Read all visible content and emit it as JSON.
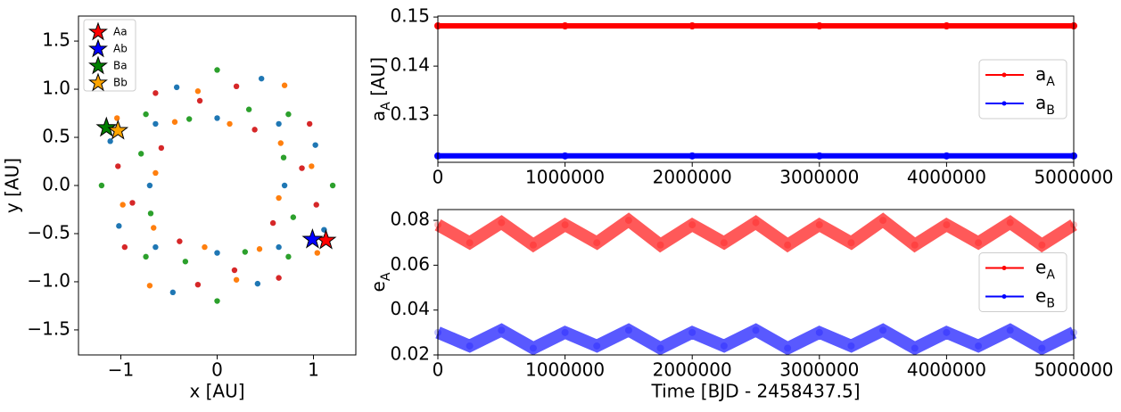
{
  "chart_data": [
    {
      "type": "scatter",
      "xlabel": "x [AU]",
      "ylabel": "y [AU]",
      "xlim": [
        -1.44,
        1.44
      ],
      "ylim": [
        -1.76,
        1.76
      ],
      "xticks": [
        {
          "value": -1,
          "label": "−1"
        },
        0,
        1
      ],
      "yticks": [
        {
          "value": -1.5,
          "label": "−1.5"
        },
        {
          "value": -1,
          "label": "−1.0"
        },
        {
          "value": -0.5,
          "label": "−0.5"
        },
        {
          "value": 0,
          "label": "0.0"
        },
        0.5,
        {
          "value": 1,
          "label": "1.0"
        },
        1.5
      ],
      "legend": "upper left",
      "series": [
        {
          "color": "#1f77b4",
          "x": [
            0.7,
            1.02,
            0.64,
            0.46,
            0,
            -0.42,
            -0.64,
            -1.11,
            -0.7,
            -1.02,
            -0.64,
            -0.46,
            0,
            0.42,
            0.64,
            1.11
          ],
          "values": [
            0,
            0.42,
            0.64,
            1.11,
            0.7,
            1.02,
            0.64,
            0.46,
            0,
            -0.42,
            -0.64,
            -1.11,
            -0.7,
            -1.02,
            -0.64,
            -0.46
          ]
        },
        {
          "color": "#ff7f0e",
          "x": [
            0.98,
            0.66,
            0.7,
            0.13,
            -0.2,
            -0.44,
            -1.04,
            -0.64,
            -0.98,
            -0.66,
            -0.7,
            -0.13,
            0.2,
            0.44,
            1.04,
            0.64
          ],
          "values": [
            0.2,
            0.44,
            1.04,
            0.64,
            0.98,
            0.66,
            0.7,
            0.13,
            -0.2,
            -0.44,
            -1.04,
            -0.64,
            -0.98,
            -0.66,
            -0.7,
            -0.13
          ]
        },
        {
          "color": "#2ca02c",
          "x": [
            1.2,
            0.69,
            0.74,
            0.33,
            0,
            -0.29,
            -0.74,
            -0.79,
            -1.2,
            -0.69,
            -0.74,
            -0.33,
            0,
            0.29,
            0.74,
            0.79
          ],
          "values": [
            0,
            0.29,
            0.74,
            0.79,
            1.2,
            0.69,
            0.74,
            0.33,
            0,
            -0.29,
            -0.74,
            -0.79,
            -1.2,
            -0.69,
            -0.74,
            -0.33
          ]
        },
        {
          "color": "#d62728",
          "x": [
            0.88,
            0.96,
            0.39,
            0.2,
            -0.18,
            -0.64,
            -0.58,
            -1.03,
            -0.88,
            -0.96,
            -0.39,
            -0.2,
            0.18,
            0.64,
            0.58,
            1.03
          ],
          "values": [
            0.18,
            0.64,
            0.58,
            1.03,
            0.88,
            0.96,
            0.39,
            0.2,
            -0.18,
            -0.64,
            -0.58,
            -1.03,
            -0.88,
            -0.96,
            -0.39,
            -0.2
          ]
        }
      ],
      "markers": [
        {
          "name": "Aa",
          "color": "#ff0000",
          "x": 1.13,
          "y": -0.57
        },
        {
          "name": "Ab",
          "color": "#0000ff",
          "x": 0.99,
          "y": -0.56
        },
        {
          "name": "Ba",
          "color": "#008000",
          "x": -1.15,
          "y": 0.6
        },
        {
          "name": "Bb",
          "color": "#ffa500",
          "x": -1.03,
          "y": 0.57
        }
      ]
    },
    {
      "type": "line",
      "ylabel": {
        "text": "a",
        "sub": "A",
        "unit": " [AU]"
      },
      "xlim": [
        0,
        5000000
      ],
      "ylim": [
        0.1204,
        0.1502
      ],
      "xticks": [
        0,
        1000000,
        2000000,
        3000000,
        4000000,
        5000000
      ],
      "yticks": [
        0.13,
        0.14,
        0.15
      ],
      "legend": "center right",
      "marker_alpha": 1,
      "x": [
        0,
        1000000,
        2000000,
        3000000,
        4000000,
        5000000
      ],
      "series": [
        {
          "name": "a",
          "sub": "A",
          "color": "#ff0000",
          "values": [
            0.1482,
            0.1482,
            0.1482,
            0.1482,
            0.1482,
            0.1482
          ]
        },
        {
          "name": "a",
          "sub": "B",
          "color": "#0000ff",
          "values": [
            0.1217,
            0.1217,
            0.1217,
            0.1217,
            0.1217,
            0.1217
          ]
        }
      ]
    },
    {
      "type": "line",
      "xlabel": "Time [BJD - 2458437.5]",
      "ylabel": {
        "text": "e",
        "sub": "A"
      },
      "xlim": [
        0,
        5000000
      ],
      "ylim": [
        0.02,
        0.0848
      ],
      "xticks": [
        0,
        1000000,
        2000000,
        3000000,
        4000000,
        5000000
      ],
      "yticks": [
        0.02,
        0.04,
        0.06,
        0.08
      ],
      "legend": "center right",
      "marker_alpha": 0.25,
      "x": [
        0,
        250000,
        500000,
        750000,
        1000000,
        1250000,
        1500000,
        1750000,
        2000000,
        2250000,
        2500000,
        2750000,
        3000000,
        3250000,
        3500000,
        3750000,
        4000000,
        4250000,
        4500000,
        4750000,
        5000000
      ],
      "series": [
        {
          "name": "e",
          "sub": "A",
          "color": "#ff0000",
          "values": [
            0.078,
            0.07,
            0.079,
            0.069,
            0.078,
            0.07,
            0.08,
            0.069,
            0.078,
            0.07,
            0.079,
            0.069,
            0.078,
            0.07,
            0.08,
            0.069,
            0.078,
            0.07,
            0.079,
            0.069,
            0.078
          ]
        },
        {
          "name": "e",
          "sub": "B",
          "color": "#0000ff",
          "values": [
            0.03,
            0.024,
            0.031,
            0.023,
            0.03,
            0.024,
            0.031,
            0.023,
            0.03,
            0.024,
            0.031,
            0.023,
            0.03,
            0.024,
            0.031,
            0.023,
            0.03,
            0.024,
            0.031,
            0.023,
            0.03
          ]
        }
      ]
    }
  ]
}
